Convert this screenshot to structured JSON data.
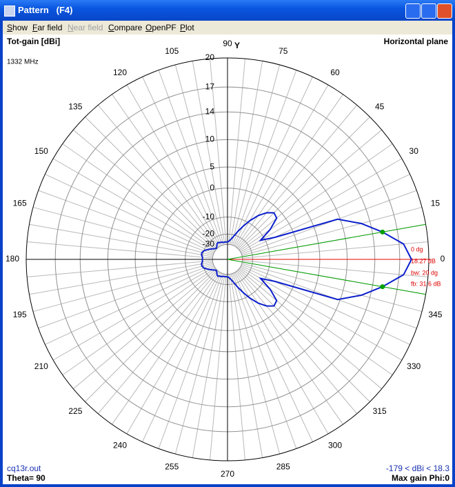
{
  "window": {
    "title": "Pattern   (F4)"
  },
  "menu": [
    {
      "label": "Show",
      "enabled": true
    },
    {
      "label": "Far field",
      "enabled": true
    },
    {
      "label": "Near field",
      "enabled": false
    },
    {
      "label": "Compare",
      "enabled": true
    },
    {
      "label": "OpenPF",
      "enabled": true
    },
    {
      "label": "Plot",
      "enabled": true
    }
  ],
  "chart_data": {
    "type": "polar",
    "title": "Horizontal plane",
    "radial_label": "Tot-gain [dBi]",
    "frequency": "1332 MHz",
    "axis_label": "Y",
    "radial_scale": "log",
    "rlim": [
      -30,
      20
    ],
    "rticks": [
      20,
      17,
      14,
      10,
      5,
      0,
      -10,
      -20,
      -30
    ],
    "angle_ticks": [
      0,
      15,
      30,
      45,
      60,
      75,
      90,
      105,
      120,
      135,
      150,
      165,
      180,
      195,
      210,
      225,
      240,
      255,
      270,
      285,
      300,
      315,
      330,
      345
    ],
    "x": [
      0,
      5,
      10,
      15,
      20,
      25,
      30,
      35,
      40,
      45,
      50,
      55,
      60,
      65,
      70,
      75,
      80,
      85,
      90,
      95,
      100,
      105,
      110,
      115,
      120,
      125,
      130,
      135,
      140,
      145,
      150,
      155,
      160,
      165,
      170,
      175,
      180,
      185,
      190,
      195,
      200,
      205,
      210,
      215,
      220,
      225,
      230,
      235,
      240,
      245,
      250,
      255,
      260,
      265,
      270,
      275,
      280,
      285,
      290,
      295,
      300,
      305,
      310,
      315,
      320,
      325,
      330,
      335,
      340,
      345,
      350,
      355
    ],
    "series": [
      {
        "name": "cq13r.out",
        "color": "#0a1ecc",
        "values": [
          18.27,
          17.5,
          15.27,
          12.8,
          9.6,
          -6,
          -12,
          -6,
          -2,
          -1.5,
          -3,
          -5.5,
          -9,
          -13,
          -17,
          -21,
          -24,
          -26,
          -27,
          -27,
          -27,
          -27,
          -26,
          -26,
          -25,
          -26,
          -28,
          -29,
          -28,
          -26,
          -24,
          -22,
          -20,
          -19,
          -19,
          -20,
          -20,
          -20,
          -19,
          -19,
          -20,
          -22,
          -24,
          -26,
          -28,
          -29,
          -28,
          -26,
          -25,
          -26,
          -26,
          -27,
          -27,
          -27,
          -27,
          -26,
          -24,
          -21,
          -17,
          -13,
          -9,
          -5.5,
          -3,
          -1.5,
          -2,
          -6,
          -12,
          -6,
          9.6,
          12.8,
          15.27,
          17.5
        ]
      }
    ],
    "markers": {
      "color": "#00a000",
      "x": [
        10,
        350
      ]
    },
    "max_direction": {
      "color": "#e00000",
      "x": 0
    },
    "annotations": [
      "0 dg",
      "18.27 dB",
      "bw: 20 dg",
      "fb: 31.6 dB"
    ],
    "footer": {
      "file": "cq13r.out",
      "theta": "Theta= 90",
      "range": "-179 < dBi < 18.3",
      "max_gain": "Max gain Phi:0"
    }
  }
}
